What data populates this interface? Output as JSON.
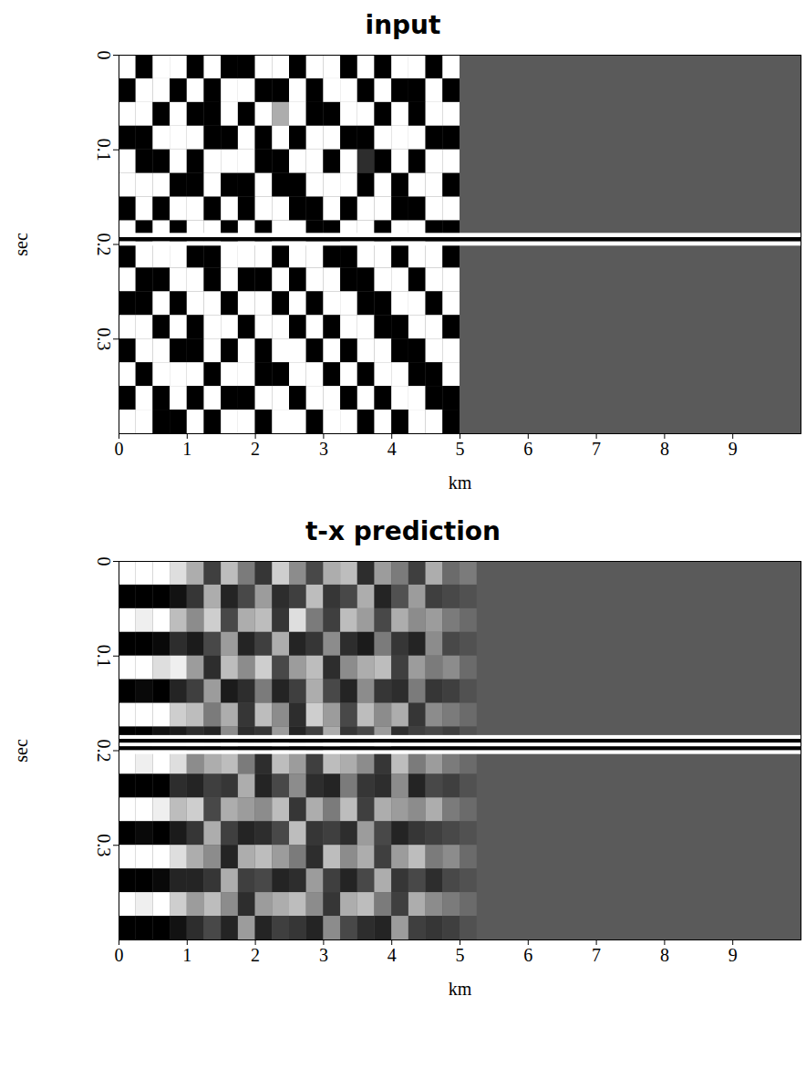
{
  "chart_data": [
    {
      "type": "heatmap",
      "title": "input",
      "x_label": "km",
      "y_label": "sec",
      "xlim": [
        0,
        10
      ],
      "ylim": [
        0,
        0.4
      ],
      "xticks": [
        0,
        1,
        2,
        3,
        4,
        5,
        6,
        7,
        8,
        9
      ],
      "yticks": [
        0,
        0.1,
        0.2,
        0.3
      ],
      "zlim": [
        -1,
        1
      ],
      "background": 0,
      "cells": {
        "x": [
          0.125,
          0.375,
          0.625,
          0.875,
          1.125,
          1.375,
          1.625,
          1.875,
          2.125,
          2.375,
          2.625,
          2.875,
          3.125,
          3.375,
          3.625,
          3.875,
          4.125,
          4.375,
          4.625,
          4.875
        ],
        "t": [
          0.0125,
          0.0375,
          0.0625,
          0.0875,
          0.1125,
          0.1375,
          0.1625,
          0.1875,
          0.2125,
          0.2375,
          0.2625,
          0.2875,
          0.3125,
          0.3375,
          0.3625,
          0.3875
        ],
        "z": [
          [
            1,
            -1,
            1,
            1,
            -1,
            1,
            -1,
            -1,
            1,
            1,
            -1,
            1,
            1,
            -1,
            1,
            -1,
            1,
            1,
            -1,
            1
          ],
          [
            -1,
            1,
            1,
            -1,
            1,
            -1,
            1,
            1,
            -1,
            -1,
            1,
            -1,
            1,
            1,
            -1,
            1,
            -1,
            -1,
            1,
            -1
          ],
          [
            1,
            1,
            -1,
            1,
            -1,
            -1,
            1,
            -1,
            1,
            0.5,
            1,
            -1,
            -1,
            1,
            1,
            -1,
            1,
            -1,
            1,
            1
          ],
          [
            -1,
            -1,
            1,
            1,
            1,
            -1,
            -1,
            1,
            -1,
            1,
            -1,
            1,
            1,
            -1,
            -1,
            1,
            1,
            1,
            -1,
            -1
          ],
          [
            1,
            -1,
            -1,
            1,
            -1,
            1,
            1,
            1,
            -1,
            -1,
            1,
            1,
            -1,
            1,
            -0.5,
            -1,
            1,
            -1,
            1,
            1
          ],
          [
            1,
            1,
            1,
            -1,
            -1,
            1,
            -1,
            -1,
            1,
            -1,
            -1,
            1,
            1,
            1,
            -1,
            1,
            -1,
            1,
            1,
            -1
          ],
          [
            -1,
            1,
            -1,
            1,
            1,
            -1,
            1,
            -1,
            1,
            1,
            -1,
            -1,
            1,
            -1,
            1,
            1,
            -1,
            -1,
            1,
            1
          ],
          [
            1,
            -1,
            1,
            -1,
            1,
            1,
            -1,
            1,
            -1,
            1,
            1,
            -1,
            -1,
            1,
            1,
            -1,
            1,
            1,
            -1,
            -1
          ],
          [
            -1,
            1,
            1,
            1,
            -1,
            -1,
            1,
            1,
            1,
            -1,
            1,
            1,
            -1,
            -1,
            1,
            1,
            -1,
            1,
            1,
            -1
          ],
          [
            1,
            -1,
            -1,
            1,
            1,
            -1,
            1,
            -1,
            -1,
            1,
            -1,
            1,
            1,
            -1,
            -1,
            1,
            1,
            -1,
            1,
            1
          ],
          [
            -1,
            -1,
            1,
            -1,
            1,
            1,
            -1,
            1,
            1,
            -1,
            1,
            -1,
            1,
            1,
            -1,
            -1,
            1,
            1,
            -1,
            1
          ],
          [
            1,
            1,
            -1,
            1,
            -1,
            1,
            1,
            -1,
            1,
            1,
            -1,
            1,
            -1,
            1,
            1,
            -1,
            -1,
            1,
            1,
            -1
          ],
          [
            -1,
            1,
            1,
            -1,
            -1,
            1,
            -1,
            1,
            -1,
            1,
            1,
            -1,
            1,
            -1,
            1,
            1,
            -1,
            -1,
            1,
            1
          ],
          [
            1,
            -1,
            1,
            1,
            1,
            -1,
            1,
            1,
            -1,
            -1,
            1,
            1,
            -1,
            1,
            -1,
            1,
            1,
            -1,
            -1,
            1
          ],
          [
            -1,
            1,
            -1,
            1,
            -1,
            1,
            -1,
            -1,
            1,
            1,
            -1,
            1,
            1,
            -1,
            1,
            -1,
            1,
            1,
            -1,
            -1
          ],
          [
            1,
            1,
            -1,
            -1,
            1,
            -1,
            1,
            1,
            -1,
            1,
            1,
            -1,
            1,
            1,
            -1,
            1,
            -1,
            1,
            1,
            -1
          ]
        ]
      },
      "event": {
        "t": [
          0.1905,
          0.195,
          0.1995
        ],
        "z": [
          1,
          -1,
          1
        ]
      }
    },
    {
      "type": "heatmap",
      "title": "t-x prediction",
      "x_label": "km",
      "y_label": "sec",
      "xlim": [
        0,
        10
      ],
      "ylim": [
        0,
        0.4
      ],
      "xticks": [
        0,
        1,
        2,
        3,
        4,
        5,
        6,
        7,
        8,
        9
      ],
      "yticks": [
        0,
        0.1,
        0.2,
        0.3
      ],
      "zlim": [
        -1,
        1
      ],
      "background": 0,
      "cells": {
        "x": [
          0.125,
          0.375,
          0.625,
          0.875,
          1.125,
          1.375,
          1.625,
          1.875,
          2.125,
          2.375,
          2.625,
          2.875,
          3.125,
          3.375,
          3.625,
          3.875,
          4.125,
          4.375,
          4.625,
          4.875,
          5.125
        ],
        "t": [
          0.0125,
          0.0375,
          0.0625,
          0.0875,
          0.1125,
          0.1375,
          0.1625,
          0.1875,
          0.2125,
          0.2375,
          0.2625,
          0.2875,
          0.3125,
          0.3375,
          0.3625,
          0.3875
        ],
        "z": [
          [
            1,
            1,
            1,
            0.8,
            0.5,
            -0.3,
            0.6,
            0.2,
            -0.4,
            0.7,
            0.3,
            -0.2,
            0.5,
            0.6,
            -0.5,
            0.4,
            0.2,
            -0.3,
            0.5,
            0.1,
            0.2
          ],
          [
            -1,
            -1,
            -1,
            -0.8,
            -0.4,
            0.5,
            -0.6,
            -0.2,
            0.4,
            -0.5,
            -0.3,
            0.6,
            -0.4,
            -0.2,
            0.5,
            -0.6,
            -0.1,
            0.4,
            -0.3,
            -0.2,
            -0.1
          ],
          [
            1,
            0.9,
            1,
            0.6,
            0.3,
            0.7,
            -0.2,
            0.5,
            0.6,
            -0.4,
            0.8,
            0.2,
            -0.3,
            0.6,
            0.4,
            -0.2,
            0.5,
            0.3,
            0.4,
            0.2,
            0.1
          ],
          [
            -1,
            -1,
            -0.9,
            -0.5,
            -0.7,
            -0.2,
            0.4,
            -0.6,
            -0.3,
            0.5,
            -0.6,
            -0.4,
            0.3,
            -0.5,
            -0.7,
            0.2,
            -0.4,
            -0.6,
            0.3,
            -0.2,
            -0.1
          ],
          [
            1,
            1,
            0.8,
            0.9,
            0.4,
            -0.5,
            0.6,
            0.3,
            0.7,
            -0.2,
            0.4,
            0.6,
            -0.5,
            0.3,
            0.5,
            0.6,
            -0.3,
            0.4,
            0.2,
            0.3,
            0.1
          ],
          [
            -1,
            -0.9,
            -1,
            -0.6,
            -0.3,
            0.4,
            -0.7,
            -0.5,
            0.2,
            -0.6,
            -0.3,
            0.5,
            -0.2,
            -0.6,
            0.3,
            -0.4,
            -0.5,
            0.2,
            -0.4,
            -0.3,
            -0.1
          ],
          [
            1,
            1,
            1,
            0.7,
            0.6,
            0.2,
            0.5,
            -0.4,
            0.6,
            0.3,
            -0.5,
            0.7,
            0.4,
            -0.2,
            0.6,
            0.3,
            0.5,
            -0.4,
            0.3,
            0.2,
            0.1
          ],
          [
            -1,
            -1,
            -0.8,
            -0.7,
            -0.5,
            -0.6,
            0.3,
            -0.5,
            -0.4,
            0.4,
            -0.6,
            -0.3,
            0.5,
            -0.4,
            -0.2,
            0.4,
            -0.5,
            -0.3,
            -0.2,
            -0.3,
            -0.1
          ],
          [
            1,
            0.9,
            1,
            0.8,
            0.3,
            0.5,
            0.6,
            0.2,
            -0.5,
            0.6,
            0.4,
            -0.3,
            0.6,
            0.5,
            0.3,
            -0.4,
            0.6,
            0.2,
            0.4,
            0.2,
            0.1
          ],
          [
            -1,
            -1,
            -1,
            -0.5,
            -0.6,
            -0.3,
            -0.4,
            0.5,
            -0.6,
            -0.2,
            0.3,
            -0.5,
            -0.6,
            0.2,
            -0.4,
            -0.5,
            0.3,
            -0.6,
            -0.2,
            -0.3,
            -0.1
          ],
          [
            1,
            1,
            0.9,
            0.6,
            0.7,
            -0.2,
            0.5,
            0.4,
            0.3,
            0.6,
            -0.4,
            0.5,
            0.2,
            0.6,
            -0.3,
            0.5,
            0.4,
            0.3,
            0.5,
            0.2,
            0.1
          ],
          [
            -1,
            -0.9,
            -1,
            -0.7,
            -0.4,
            0.5,
            -0.3,
            -0.6,
            -0.5,
            -0.2,
            0.6,
            -0.4,
            -0.3,
            -0.5,
            0.4,
            -0.2,
            -0.6,
            -0.4,
            -0.3,
            -0.2,
            -0.1
          ],
          [
            1,
            1,
            1,
            0.8,
            0.5,
            0.3,
            -0.6,
            0.5,
            0.6,
            0.4,
            0.2,
            -0.5,
            0.6,
            0.3,
            0.5,
            -0.3,
            0.4,
            0.6,
            0.2,
            0.3,
            0.1
          ],
          [
            -1,
            -1,
            -0.9,
            -0.6,
            -0.6,
            -0.4,
            0.5,
            -0.3,
            -0.2,
            -0.6,
            -0.5,
            0.4,
            -0.3,
            -0.6,
            -0.2,
            0.5,
            -0.4,
            -0.2,
            -0.5,
            -0.2,
            -0.1
          ],
          [
            1,
            0.9,
            1,
            0.7,
            0.4,
            0.6,
            0.3,
            -0.5,
            0.4,
            0.5,
            0.6,
            0.3,
            -0.4,
            0.5,
            0.6,
            0.2,
            -0.3,
            0.5,
            0.3,
            0.2,
            0.1
          ],
          [
            -1,
            -1,
            -1,
            -0.8,
            -0.5,
            -0.2,
            -0.6,
            0.4,
            -0.6,
            -0.3,
            -0.4,
            -0.6,
            0.3,
            -0.2,
            -0.5,
            -0.6,
            0.4,
            -0.3,
            -0.4,
            -0.3,
            -0.1
          ]
        ]
      },
      "event": {
        "t": [
          0.186,
          0.19,
          0.194,
          0.198,
          0.202
        ],
        "z": [
          1,
          -1,
          1,
          -1,
          1
        ]
      }
    }
  ]
}
